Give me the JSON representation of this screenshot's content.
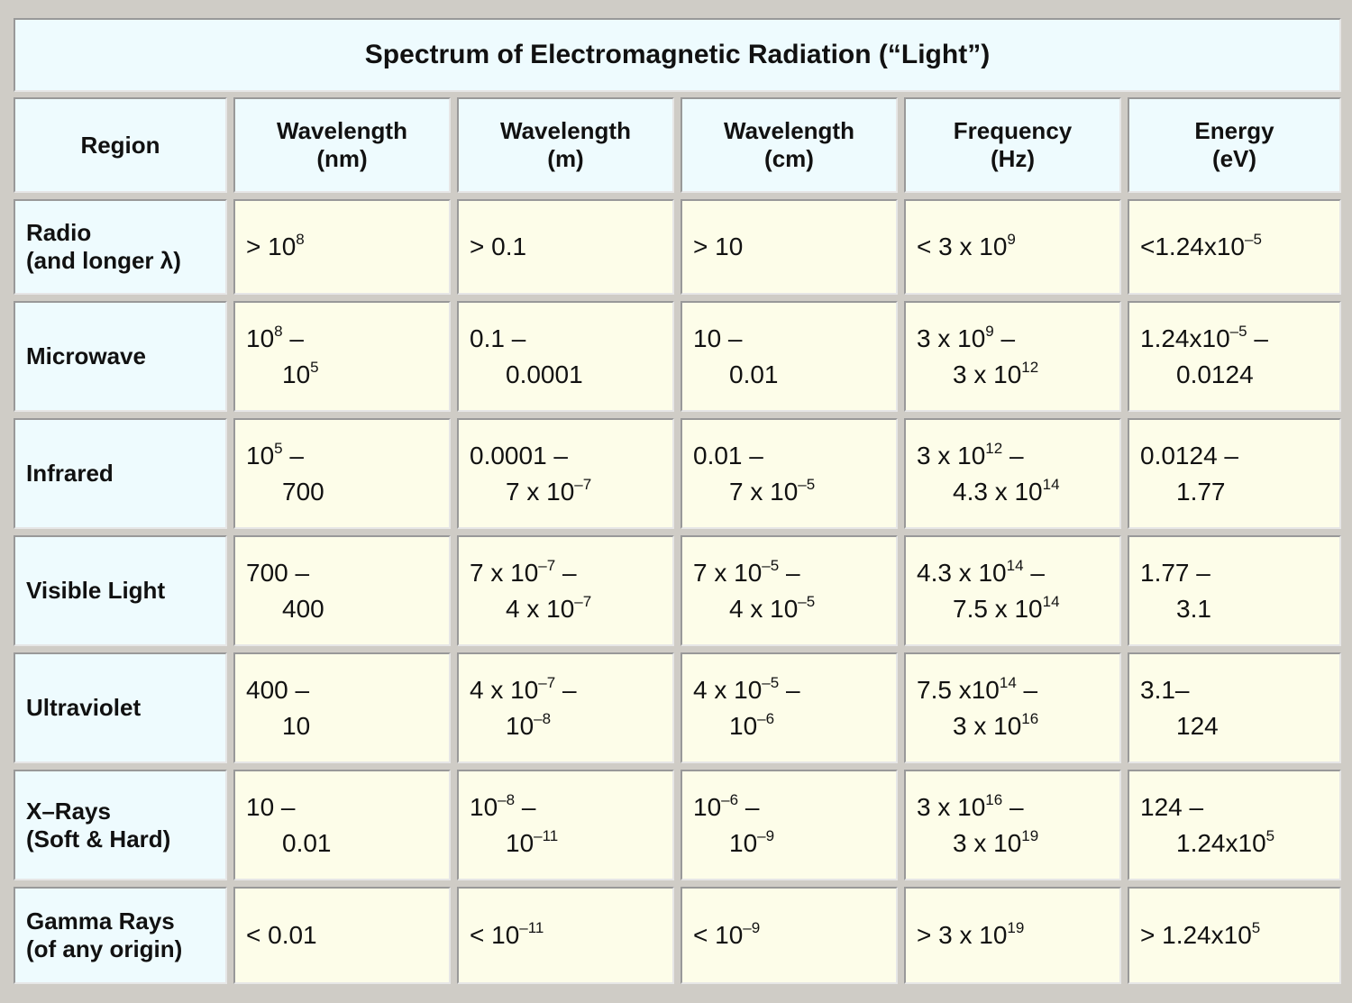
{
  "title": "Spectrum of Electromagnetic Radiation (“Light”)",
  "header": [
    [
      "Region"
    ],
    [
      "Wavelength",
      "(nm)"
    ],
    [
      "Wavelength",
      "(m)"
    ],
    [
      "Wavelength",
      "(cm)"
    ],
    [
      "Frequency",
      "(Hz)"
    ],
    [
      "Energy",
      "(eV)"
    ]
  ],
  "rows": [
    {
      "region": [
        "Radio",
        "(and longer λ)"
      ],
      "cells": [
        [
          [
            "> 10",
            {
              "sup": "8"
            }
          ]
        ],
        [
          [
            "> 0.1"
          ]
        ],
        [
          [
            "> 10"
          ]
        ],
        [
          [
            "< 3 x 10",
            {
              "sup": "9"
            }
          ]
        ],
        [
          [
            "<1.24x10",
            {
              "sup": "–5"
            }
          ]
        ]
      ]
    },
    {
      "region": [
        "Microwave"
      ],
      "cells": [
        [
          [
            "10",
            {
              "sup": "8"
            },
            " –"
          ],
          [
            "10",
            {
              "sup": "5"
            }
          ]
        ],
        [
          [
            "0.1 –"
          ],
          [
            "0.0001"
          ]
        ],
        [
          [
            "10 –"
          ],
          [
            "0.01"
          ]
        ],
        [
          [
            "3 x 10",
            {
              "sup": "9"
            },
            " –"
          ],
          [
            "3 x 10",
            {
              "sup": "12"
            }
          ]
        ],
        [
          [
            "1.24x10",
            {
              "sup": "–5"
            },
            " –"
          ],
          [
            "0.0124"
          ]
        ]
      ]
    },
    {
      "region": [
        "Infrared"
      ],
      "cells": [
        [
          [
            "10",
            {
              "sup": "5"
            },
            " –"
          ],
          [
            "700"
          ]
        ],
        [
          [
            "0.0001 –"
          ],
          [
            "7 x 10",
            {
              "sup": "–7"
            }
          ]
        ],
        [
          [
            "0.01 –"
          ],
          [
            "7 x 10",
            {
              "sup": "–5"
            }
          ]
        ],
        [
          [
            "3 x 10",
            {
              "sup": "12"
            },
            " –"
          ],
          [
            "4.3 x 10",
            {
              "sup": "14"
            }
          ]
        ],
        [
          [
            "0.0124 –"
          ],
          [
            "1.77"
          ]
        ]
      ]
    },
    {
      "region": [
        "Visible Light"
      ],
      "cells": [
        [
          [
            "700 –"
          ],
          [
            "400"
          ]
        ],
        [
          [
            "7 x 10",
            {
              "sup": "–7"
            },
            " –"
          ],
          [
            "4 x 10",
            {
              "sup": "–7"
            }
          ]
        ],
        [
          [
            "7 x 10",
            {
              "sup": "–5"
            },
            " –"
          ],
          [
            "4 x 10",
            {
              "sup": "–5"
            }
          ]
        ],
        [
          [
            "4.3 x 10",
            {
              "sup": "14"
            },
            " –"
          ],
          [
            "7.5 x 10",
            {
              "sup": "14"
            }
          ]
        ],
        [
          [
            "1.77 –"
          ],
          [
            "3.1"
          ]
        ]
      ]
    },
    {
      "region": [
        "Ultraviolet"
      ],
      "cells": [
        [
          [
            "400 –"
          ],
          [
            "10"
          ]
        ],
        [
          [
            "4 x 10",
            {
              "sup": "–7"
            },
            " –"
          ],
          [
            "10",
            {
              "sup": "–8"
            }
          ]
        ],
        [
          [
            "4 x 10",
            {
              "sup": "–5"
            },
            " –"
          ],
          [
            "10",
            {
              "sup": "–6"
            }
          ]
        ],
        [
          [
            "7.5 x10",
            {
              "sup": "14"
            },
            " –"
          ],
          [
            "3 x 10",
            {
              "sup": "16"
            }
          ]
        ],
        [
          [
            "3.1–"
          ],
          [
            "124"
          ]
        ]
      ]
    },
    {
      "region": [
        "X–Rays",
        "(Soft & Hard)"
      ],
      "cells": [
        [
          [
            "10 –"
          ],
          [
            "0.01"
          ]
        ],
        [
          [
            "10",
            {
              "sup": "–8"
            },
            " –"
          ],
          [
            "10",
            {
              "sup": "–11"
            }
          ]
        ],
        [
          [
            "10",
            {
              "sup": "–6"
            },
            " –"
          ],
          [
            "10",
            {
              "sup": "–9"
            }
          ]
        ],
        [
          [
            "3 x 10",
            {
              "sup": "16"
            },
            " –"
          ],
          [
            "3 x 10",
            {
              "sup": "19"
            }
          ]
        ],
        [
          [
            "124 –"
          ],
          [
            "1.24x10",
            {
              "sup": "5"
            }
          ]
        ]
      ]
    },
    {
      "region": [
        "Gamma Rays",
        "(of any origin)"
      ],
      "cells": [
        [
          [
            "< 0.01"
          ]
        ],
        [
          [
            "< 10",
            {
              "sup": "–11"
            }
          ]
        ],
        [
          [
            "< 10",
            {
              "sup": "–9"
            }
          ]
        ],
        [
          [
            "> 3 x 10",
            {
              "sup": "19"
            }
          ]
        ],
        [
          [
            "> 1.24x10",
            {
              "sup": "5"
            }
          ]
        ]
      ]
    }
  ]
}
